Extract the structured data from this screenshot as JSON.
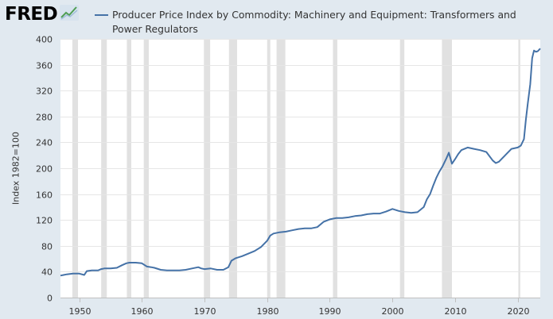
{
  "logo": {
    "text": "FRED",
    "icon": "fred-chart-icon"
  },
  "colors": {
    "background": "#e1e9f0",
    "plot_bg": "#ffffff",
    "series": "#4572a7",
    "recession": "#e1e1e1",
    "grid": "#e6e6e6"
  },
  "chart_data": {
    "type": "line",
    "title": "Producer Price Index by Commodity: Machinery and Equipment: Transformers and Power Regulators",
    "ylabel": "Index 1982=100",
    "xlabel": "",
    "xlim": [
      1947,
      2023.6
    ],
    "ylim": [
      0,
      400
    ],
    "x_ticks": [
      1950,
      1960,
      1970,
      1980,
      1990,
      2000,
      2010,
      2020
    ],
    "y_ticks": [
      0,
      40,
      80,
      120,
      160,
      200,
      240,
      280,
      320,
      360,
      400
    ],
    "grid": true,
    "legend": "top",
    "recessions": [
      [
        1948.9,
        1949.8
      ],
      [
        1953.5,
        1954.4
      ],
      [
        1957.6,
        1958.3
      ],
      [
        1960.3,
        1961.1
      ],
      [
        1969.9,
        1970.9
      ],
      [
        1973.9,
        1975.2
      ],
      [
        1980.0,
        1980.5
      ],
      [
        1981.5,
        1982.9
      ],
      [
        1990.5,
        1991.2
      ],
      [
        2001.2,
        2001.9
      ],
      [
        2007.9,
        2009.5
      ],
      [
        2020.1,
        2020.4
      ]
    ],
    "series": [
      {
        "name": "Producer Price Index by Commodity: Machinery and Equipment: Transformers and Power Regulators",
        "x": [
          1947,
          1947.5,
          1948,
          1949,
          1950,
          1950.8,
          1951.2,
          1952,
          1953,
          1953.5,
          1954,
          1955,
          1956,
          1956.8,
          1957.5,
          1958,
          1959,
          1960,
          1960.8,
          1961.5,
          1962,
          1963,
          1964,
          1965,
          1966,
          1967,
          1968,
          1969,
          1969.5,
          1970,
          1971,
          1972,
          1973,
          1973.8,
          1974.3,
          1975,
          1976,
          1977,
          1978,
          1979,
          1980,
          1980.5,
          1981,
          1982,
          1983,
          1984,
          1985,
          1986,
          1987,
          1988,
          1989,
          1990,
          1991,
          1992,
          1993,
          1994,
          1995,
          1996,
          1997,
          1998,
          1999,
          2000,
          2001,
          2002,
          2003,
          2004,
          2005,
          2005.5,
          2006,
          2006.5,
          2007,
          2007.5,
          2008,
          2008.6,
          2009,
          2009.5,
          2010,
          2010.5,
          2011,
          2012,
          2013,
          2014,
          2015,
          2016,
          2016.5,
          2017,
          2018,
          2019,
          2020,
          2020.5,
          2021,
          2021.3,
          2021.6,
          2022,
          2022.3,
          2022.6,
          2022.9,
          2023.2,
          2023.6
        ],
        "values": [
          34,
          35,
          36,
          37,
          37,
          35,
          41,
          42,
          42,
          44,
          45,
          45,
          46,
          50,
          53,
          54,
          54,
          53,
          48,
          47,
          46,
          43,
          42,
          42,
          42,
          43,
          45,
          47,
          45,
          44,
          45,
          43,
          43,
          47,
          57,
          61,
          64,
          68,
          72,
          78,
          88,
          96,
          99,
          101,
          102,
          104,
          106,
          107,
          107,
          109,
          117,
          121,
          123,
          123,
          124,
          126,
          127,
          129,
          130,
          130,
          133,
          137,
          134,
          132,
          131,
          132,
          140,
          152,
          160,
          173,
          185,
          195,
          203,
          215,
          224,
          207,
          214,
          222,
          228,
          232,
          230,
          228,
          225,
          212,
          208,
          210,
          220,
          230,
          232,
          235,
          245,
          275,
          300,
          330,
          370,
          382,
          380,
          381,
          385
        ]
      }
    ]
  }
}
